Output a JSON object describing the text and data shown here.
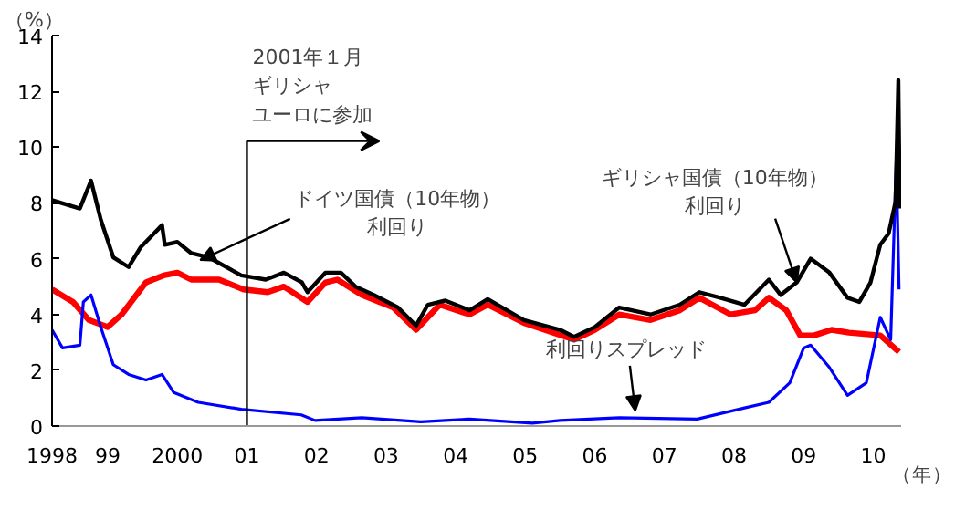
{
  "chart_data": {
    "type": "line",
    "ylabel": "（%）",
    "xlim": [
      1998.2,
      2010.4
    ],
    "ylim": [
      0,
      14
    ],
    "yticks": [
      0,
      2,
      4,
      6,
      8,
      10,
      12,
      14
    ],
    "xticks": [
      {
        "value": 1998.2,
        "label": "1998"
      },
      {
        "value": 1999,
        "label": "99"
      },
      {
        "value": 2000,
        "label": "2000"
      },
      {
        "value": 2001,
        "label": "01"
      },
      {
        "value": 2002,
        "label": "02"
      },
      {
        "value": 2003,
        "label": "03"
      },
      {
        "value": 2004,
        "label": "04"
      },
      {
        "value": 2005,
        "label": "05"
      },
      {
        "value": 2006,
        "label": "06"
      },
      {
        "value": 2007,
        "label": "07"
      },
      {
        "value": 2008,
        "label": "08"
      },
      {
        "value": 2009,
        "label": "09"
      },
      {
        "value": 2010,
        "label": "10"
      }
    ],
    "grid": false,
    "series": [
      {
        "color": "#000000",
        "x": [
          1998.2,
          1998.6,
          1998.76,
          1998.9,
          1999.08,
          1999.3,
          1999.47,
          1999.78,
          1999.82,
          2000.0,
          2000.2,
          2000.45,
          2000.92,
          2001.27,
          2001.53,
          2001.79,
          2001.87,
          2002.13,
          2002.35,
          2002.56,
          2002.82,
          2003.17,
          2003.43,
          2003.6,
          2003.85,
          2004.2,
          2004.46,
          2004.98,
          2005.5,
          2005.7,
          2006.0,
          2006.35,
          2006.8,
          2007.22,
          2007.5,
          2007.8,
          2008.15,
          2008.5,
          2008.67,
          2008.9,
          2009.1,
          2009.37,
          2009.63,
          2009.8,
          2009.96,
          2010.1,
          2010.22,
          2010.32,
          2010.36,
          2010.38
        ],
        "values": [
          8.1,
          7.8,
          8.8,
          7.4,
          6.05,
          5.7,
          6.4,
          7.2,
          6.5,
          6.6,
          6.2,
          6.05,
          5.4,
          5.25,
          5.5,
          5.15,
          4.8,
          5.5,
          5.5,
          5.0,
          4.7,
          4.25,
          3.6,
          4.35,
          4.5,
          4.15,
          4.55,
          3.8,
          3.45,
          3.2,
          3.55,
          4.25,
          4.0,
          4.35,
          4.8,
          4.6,
          4.35,
          5.25,
          4.7,
          5.15,
          6.0,
          5.5,
          4.6,
          4.45,
          5.15,
          6.5,
          6.9,
          8.05,
          12.4,
          7.8
        ]
      },
      {
        "color": "#ff0000",
        "x": [
          1998.2,
          1998.5,
          1998.73,
          1999.0,
          1999.2,
          1999.55,
          1999.8,
          2000.0,
          2000.2,
          2000.6,
          2000.95,
          2001.3,
          2001.53,
          2001.87,
          2002.13,
          2002.3,
          2002.65,
          2003.1,
          2003.43,
          2003.77,
          2004.2,
          2004.46,
          2004.98,
          2005.7,
          2006.0,
          2006.35,
          2006.8,
          2007.22,
          2007.5,
          2007.95,
          2008.3,
          2008.5,
          2008.75,
          2008.95,
          2009.15,
          2009.4,
          2009.65,
          2010.1,
          2010.37
        ],
        "values": [
          4.9,
          4.45,
          3.8,
          3.55,
          4.0,
          5.15,
          5.4,
          5.5,
          5.25,
          5.25,
          4.9,
          4.8,
          5.0,
          4.45,
          5.15,
          5.25,
          4.7,
          4.25,
          3.45,
          4.35,
          4.0,
          4.35,
          3.7,
          3.1,
          3.45,
          4.0,
          3.8,
          4.15,
          4.6,
          4.0,
          4.15,
          4.6,
          4.15,
          3.25,
          3.25,
          3.45,
          3.35,
          3.25,
          2.65
        ]
      },
      {
        "color": "#0000ff",
        "x": [
          1998.2,
          1998.35,
          1998.6,
          1998.65,
          1998.76,
          1998.9,
          1999.08,
          1999.3,
          1999.55,
          1999.78,
          1999.95,
          2000.3,
          2000.92,
          2001.78,
          2001.98,
          2002.65,
          2003.5,
          2004.2,
          2005.1,
          2005.5,
          2006.35,
          2007.47,
          2008.15,
          2008.5,
          2008.8,
          2009.0,
          2009.1,
          2009.37,
          2009.63,
          2009.9,
          2010.1,
          2010.25,
          2010.33,
          2010.37
        ],
        "values": [
          3.45,
          2.8,
          2.9,
          4.45,
          4.7,
          3.55,
          2.2,
          1.85,
          1.65,
          1.85,
          1.2,
          0.85,
          0.6,
          0.4,
          0.2,
          0.3,
          0.15,
          0.25,
          0.1,
          0.2,
          0.3,
          0.25,
          0.65,
          0.85,
          1.55,
          2.8,
          2.9,
          2.1,
          1.1,
          1.55,
          3.9,
          3.1,
          9.6,
          4.9
        ]
      }
    ],
    "ref_lines": [
      {
        "axis": "x",
        "value": 2001,
        "label": "2001年１月ギリシャユーロに参加",
        "color": "#000000"
      }
    ],
    "annotations": [
      {
        "text": "ドイツ国債（10年物）利回り",
        "x": 2000.33,
        "y": 5.95
      },
      {
        "text": "ギリシャ国債（10年物）利回り",
        "x": 2008.9,
        "y": 5.15
      },
      {
        "text": "利回りスプレッド",
        "x": 2006.58,
        "y": 0.55
      },
      "（年）"
    ]
  }
}
